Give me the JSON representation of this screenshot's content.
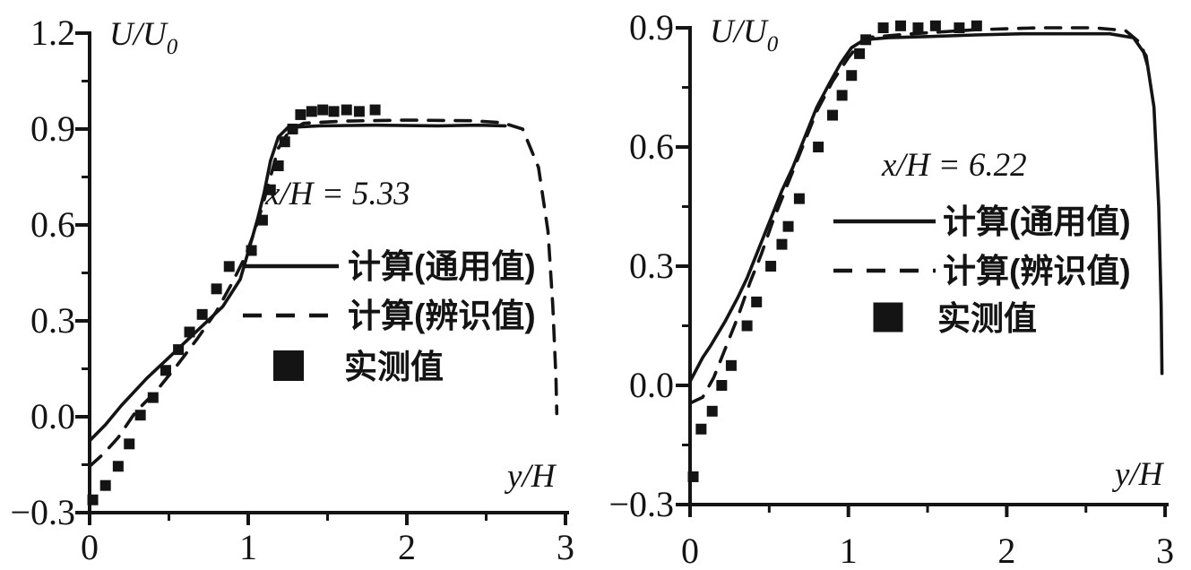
{
  "figure": {
    "background_color": "#ffffff",
    "ink_color": "#141414",
    "xlabel": "y/H",
    "ylabel": {
      "main": "U/U",
      "sub": "0"
    }
  },
  "chart_data": [
    {
      "type": "line",
      "panel": "left",
      "annotation": "x/H = 5.33",
      "xlabel": "y/H",
      "ylabel": {
        "main": "U/U",
        "sub": "0"
      },
      "xlim": [
        0,
        3
      ],
      "ylim": [
        -0.3,
        1.2
      ],
      "x_ticks": [
        0,
        1,
        2,
        3
      ],
      "x_tick_labels": [
        "0",
        "1",
        "2",
        "3"
      ],
      "y_ticks": [
        -0.3,
        0.0,
        0.3,
        0.6,
        0.9,
        1.2
      ],
      "y_tick_labels": [
        "−0.3",
        "0.0",
        "0.3",
        "0.6",
        "0.9",
        "1.2"
      ],
      "minor_x_step": 0.5,
      "minor_y_step": 0.15,
      "grid": false,
      "legend_position": "inside-right",
      "series": [
        {
          "name": "计算(通用值)",
          "style": "solid",
          "points": [
            [
              0,
              -0.075
            ],
            [
              0.1,
              -0.025
            ],
            [
              0.2,
              0.035
            ],
            [
              0.36,
              0.12
            ],
            [
              0.51,
              0.19
            ],
            [
              0.68,
              0.27
            ],
            [
              0.84,
              0.345
            ],
            [
              0.95,
              0.43
            ],
            [
              1.02,
              0.55
            ],
            [
              1.06,
              0.62
            ],
            [
              1.1,
              0.7
            ],
            [
              1.14,
              0.8
            ],
            [
              1.19,
              0.875
            ],
            [
              1.25,
              0.905
            ],
            [
              1.45,
              0.91
            ],
            [
              1.8,
              0.912
            ],
            [
              2.2,
              0.91
            ],
            [
              2.45,
              0.912
            ],
            [
              2.62,
              0.91
            ]
          ]
        },
        {
          "name": "计算(辨识值)",
          "style": "dashed",
          "points": [
            [
              0,
              -0.155
            ],
            [
              0.09,
              -0.115
            ],
            [
              0.18,
              -0.065
            ],
            [
              0.29,
              0.015
            ],
            [
              0.42,
              0.08
            ],
            [
              0.55,
              0.16
            ],
            [
              0.68,
              0.245
            ],
            [
              0.8,
              0.33
            ],
            [
              0.9,
              0.42
            ],
            [
              0.98,
              0.5
            ],
            [
              1.04,
              0.58
            ],
            [
              1.09,
              0.66
            ],
            [
              1.14,
              0.75
            ],
            [
              1.19,
              0.84
            ],
            [
              1.26,
              0.895
            ],
            [
              1.35,
              0.918
            ],
            [
              1.6,
              0.925
            ],
            [
              2.0,
              0.928
            ],
            [
              2.4,
              0.926
            ],
            [
              2.6,
              0.92
            ],
            [
              2.73,
              0.9
            ],
            [
              2.83,
              0.78
            ],
            [
              2.89,
              0.58
            ],
            [
              2.92,
              0.35
            ],
            [
              2.94,
              0.12
            ],
            [
              2.945,
              0.01
            ]
          ]
        },
        {
          "name": "实测值",
          "style": "squares",
          "points": [
            [
              0.02,
              -0.26
            ],
            [
              0.1,
              -0.215
            ],
            [
              0.18,
              -0.155
            ],
            [
              0.25,
              -0.085
            ],
            [
              0.32,
              0.005
            ],
            [
              0.4,
              0.06
            ],
            [
              0.48,
              0.145
            ],
            [
              0.56,
              0.21
            ],
            [
              0.63,
              0.265
            ],
            [
              0.71,
              0.32
            ],
            [
              0.8,
              0.4
            ],
            [
              0.88,
              0.47
            ],
            [
              1.02,
              0.52
            ],
            [
              1.09,
              0.615
            ],
            [
              1.14,
              0.71
            ],
            [
              1.19,
              0.785
            ],
            [
              1.23,
              0.86
            ],
            [
              1.28,
              0.9
            ],
            [
              1.33,
              0.945
            ],
            [
              1.4,
              0.955
            ],
            [
              1.47,
              0.96
            ],
            [
              1.54,
              0.955
            ],
            [
              1.62,
              0.96
            ],
            [
              1.7,
              0.955
            ],
            [
              1.8,
              0.96
            ]
          ]
        }
      ]
    },
    {
      "type": "line",
      "panel": "right",
      "annotation": "x/H = 6.22",
      "xlabel": "y/H",
      "ylabel": {
        "main": "U/U",
        "sub": "0"
      },
      "xlim": [
        0,
        3
      ],
      "ylim": [
        -0.3,
        0.9
      ],
      "x_ticks": [
        0,
        1,
        2,
        3
      ],
      "x_tick_labels": [
        "0",
        "1",
        "2",
        "3"
      ],
      "y_ticks": [
        -0.3,
        0.0,
        0.3,
        0.6,
        0.9
      ],
      "y_tick_labels": [
        "−0.3",
        "0.0",
        "0.3",
        "0.6",
        "0.9"
      ],
      "minor_x_step": 0.5,
      "minor_y_step": 0.15,
      "grid": false,
      "legend_position": "inside-right",
      "series": [
        {
          "name": "计算(通用值)",
          "style": "solid",
          "points": [
            [
              0,
              0.01
            ],
            [
              0.08,
              0.07
            ],
            [
              0.13,
              0.1
            ],
            [
              0.22,
              0.16
            ],
            [
              0.3,
              0.22
            ],
            [
              0.36,
              0.27
            ],
            [
              0.45,
              0.36
            ],
            [
              0.52,
              0.43
            ],
            [
              0.58,
              0.49
            ],
            [
              0.65,
              0.55
            ],
            [
              0.72,
              0.62
            ],
            [
              0.8,
              0.7
            ],
            [
              0.88,
              0.76
            ],
            [
              0.95,
              0.81
            ],
            [
              1.02,
              0.85
            ],
            [
              1.1,
              0.87
            ],
            [
              1.25,
              0.875
            ],
            [
              1.5,
              0.878
            ],
            [
              1.8,
              0.882
            ],
            [
              2.1,
              0.885
            ],
            [
              2.4,
              0.885
            ],
            [
              2.65,
              0.885
            ],
            [
              2.8,
              0.875
            ],
            [
              2.88,
              0.83
            ],
            [
              2.93,
              0.7
            ],
            [
              2.96,
              0.45
            ],
            [
              2.975,
              0.2
            ],
            [
              2.98,
              0.03
            ]
          ]
        },
        {
          "name": "计算(辨识值)",
          "style": "dashed",
          "points": [
            [
              0,
              -0.045
            ],
            [
              0.08,
              -0.03
            ],
            [
              0.15,
              0.02
            ],
            [
              0.22,
              0.09
            ],
            [
              0.3,
              0.17
            ],
            [
              0.38,
              0.26
            ],
            [
              0.45,
              0.33
            ],
            [
              0.52,
              0.41
            ],
            [
              0.6,
              0.49
            ],
            [
              0.7,
              0.59
            ],
            [
              0.8,
              0.69
            ],
            [
              0.9,
              0.765
            ],
            [
              1.0,
              0.825
            ],
            [
              1.1,
              0.875
            ],
            [
              1.4,
              0.885
            ],
            [
              1.8,
              0.895
            ],
            [
              2.2,
              0.9
            ],
            [
              2.55,
              0.9
            ],
            [
              2.75,
              0.893
            ],
            [
              2.85,
              0.86
            ],
            [
              2.9,
              0.79
            ]
          ]
        },
        {
          "name": "实测值",
          "style": "squares",
          "points": [
            [
              0.02,
              -0.23
            ],
            [
              0.07,
              -0.11
            ],
            [
              0.14,
              -0.065
            ],
            [
              0.2,
              0.0
            ],
            [
              0.26,
              0.05
            ],
            [
              0.36,
              0.15
            ],
            [
              0.42,
              0.21
            ],
            [
              0.51,
              0.3
            ],
            [
              0.58,
              0.355
            ],
            [
              0.62,
              0.4
            ],
            [
              0.69,
              0.47
            ],
            [
              0.81,
              0.6
            ],
            [
              0.9,
              0.68
            ],
            [
              0.96,
              0.73
            ],
            [
              1.02,
              0.78
            ],
            [
              1.07,
              0.835
            ],
            [
              1.11,
              0.87
            ],
            [
              1.22,
              0.9
            ],
            [
              1.33,
              0.905
            ],
            [
              1.44,
              0.9
            ],
            [
              1.55,
              0.905
            ],
            [
              1.7,
              0.9
            ],
            [
              1.81,
              0.905
            ]
          ]
        }
      ]
    }
  ]
}
